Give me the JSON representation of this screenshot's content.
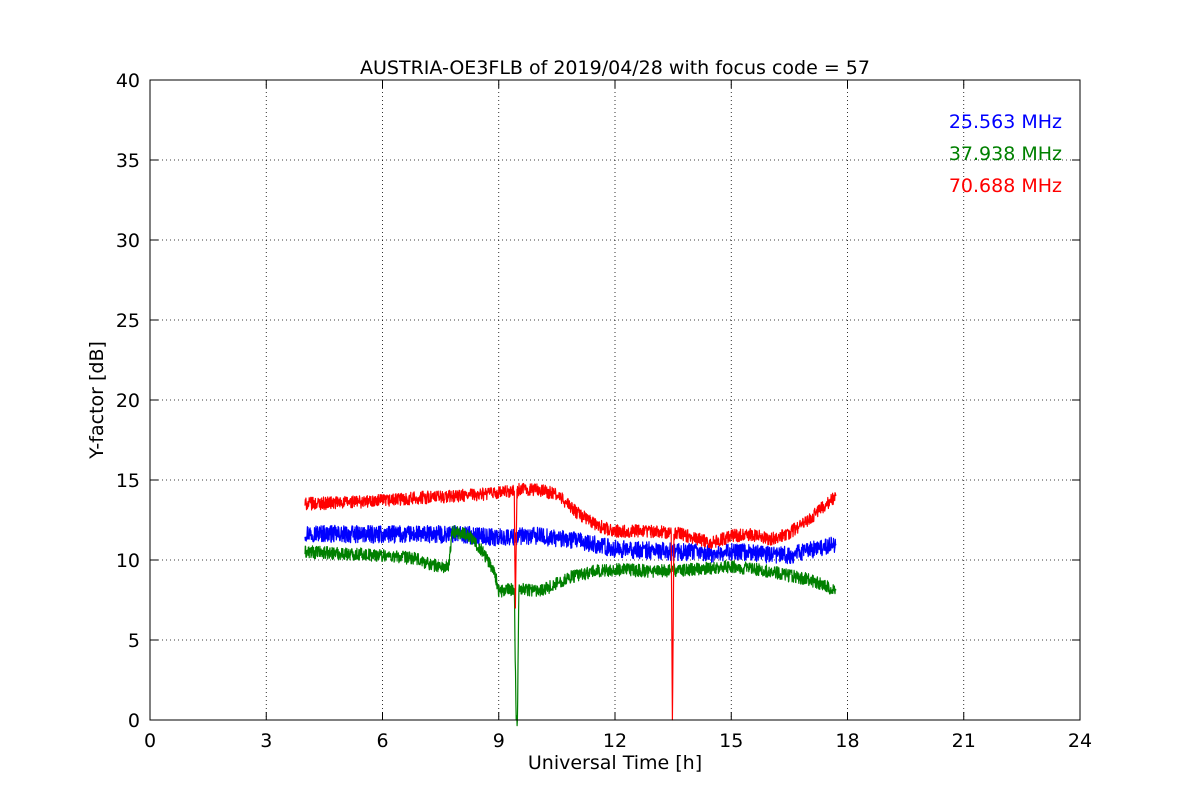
{
  "chart_data": {
    "type": "line",
    "title": "AUSTRIA-OE3FLB of 2019/04/28 with focus code = 57",
    "xlabel": "Universal Time [h]",
    "ylabel": "Y-factor [dB]",
    "xlim": [
      0,
      24
    ],
    "ylim": [
      0,
      40
    ],
    "xticks": [
      0,
      3,
      6,
      9,
      12,
      15,
      18,
      21,
      24
    ],
    "yticks": [
      0,
      5,
      10,
      15,
      20,
      25,
      30,
      35,
      40
    ],
    "grid": true,
    "legend_position": "top-right",
    "series": [
      {
        "name": "25.563 MHz",
        "color": "#0000ff",
        "noise": 0.55,
        "x": [
          4.0,
          5.0,
          6.0,
          7.0,
          8.0,
          9.0,
          10.0,
          11.0,
          12.0,
          12.5,
          13.0,
          13.5,
          14.0,
          14.5,
          15.0,
          15.5,
          16.0,
          16.5,
          17.0,
          17.5,
          17.7
        ],
        "y": [
          11.7,
          11.6,
          11.6,
          11.6,
          11.6,
          11.4,
          11.5,
          11.2,
          10.7,
          10.6,
          10.6,
          10.5,
          10.5,
          10.4,
          10.5,
          10.5,
          10.3,
          10.3,
          10.6,
          10.9,
          11.0
        ]
      },
      {
        "name": "37.938 MHz",
        "color": "#008000",
        "noise": 0.4,
        "x": [
          4.0,
          5.0,
          6.0,
          6.8,
          7.3,
          7.7,
          7.8,
          8.2,
          8.6,
          8.9,
          9.0,
          9.4,
          9.45,
          9.48,
          9.52,
          9.6,
          10.0,
          10.3,
          10.8,
          11.5,
          12.0,
          13.0,
          14.0,
          15.0,
          16.0,
          16.5,
          17.0,
          17.7
        ],
        "y": [
          10.5,
          10.4,
          10.3,
          10.1,
          9.7,
          9.5,
          11.8,
          11.6,
          10.5,
          9.2,
          8.0,
          8.2,
          0.0,
          0.0,
          8.3,
          8.2,
          8.1,
          8.3,
          8.9,
          9.3,
          9.4,
          9.3,
          9.4,
          9.6,
          9.3,
          9.0,
          8.8,
          8.1
        ]
      },
      {
        "name": "70.688 MHz",
        "color": "#ff0000",
        "noise": 0.4,
        "x": [
          4.0,
          5.0,
          6.0,
          7.0,
          8.0,
          9.0,
          9.4,
          9.43,
          9.47,
          9.5,
          10.0,
          10.5,
          11.0,
          11.5,
          12.0,
          13.0,
          13.45,
          13.48,
          13.52,
          13.6,
          14.0,
          14.5,
          15.0,
          15.5,
          16.0,
          16.5,
          17.0,
          17.5,
          17.7
        ],
        "y": [
          13.5,
          13.6,
          13.7,
          13.9,
          14.0,
          14.2,
          14.3,
          7.0,
          14.2,
          14.4,
          14.4,
          14.1,
          13.0,
          12.2,
          11.8,
          11.8,
          11.7,
          0.0,
          11.6,
          11.7,
          11.4,
          11.1,
          11.5,
          11.6,
          11.3,
          11.7,
          12.5,
          13.6,
          14.0
        ]
      }
    ]
  }
}
